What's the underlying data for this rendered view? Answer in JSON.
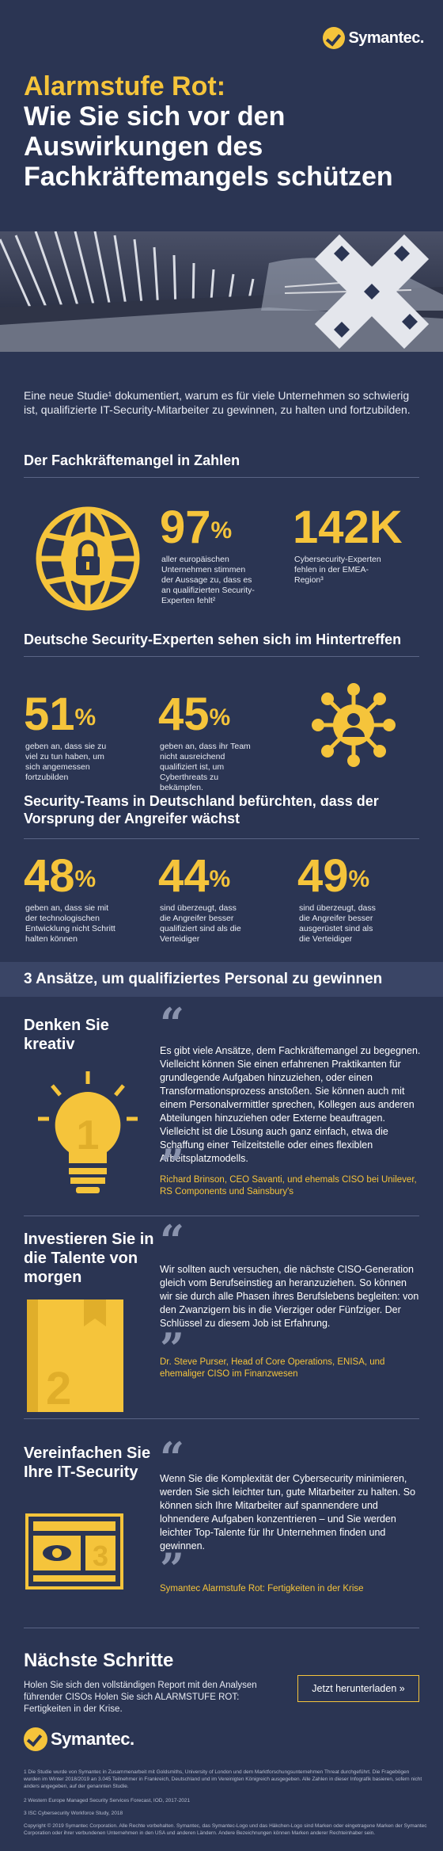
{
  "brand": "Symantec.",
  "title_line1": "Alarmstufe Rot:",
  "title_line2": "Wie Sie sich vor den Auswirkungen des Fachkräftemangels schützen",
  "intro": "Eine neue Studie¹ dokumentiert, warum es für viele Unternehmen so schwierig ist, qualifizierte IT-Security-Mitarbeiter zu gewinnen, zu halten und fortzubilden.",
  "section1": {
    "heading": "Der Fachkräftemangel in Zahlen",
    "stat1_value": "97",
    "stat1_unit": "%",
    "stat1_caption": "aller europäischen Unternehmen stimmen der Aussage zu, dass es an qualifizierten Security-Experten fehlt²",
    "stat2_value": "142K",
    "stat2_caption": "Cybersecurity-Experten fehlen in der EMEA-Region³"
  },
  "section2": {
    "heading": "Deutsche Security-Experten sehen sich im Hintertreffen",
    "stat1_value": "51",
    "stat1_unit": "%",
    "stat1_caption": "geben an, dass sie zu viel zu tun haben, um sich angemessen fortzubilden",
    "stat2_value": "45",
    "stat2_unit": "%",
    "stat2_caption": "geben an, dass ihr Team nicht ausreichend qualifiziert ist, um Cyberthreats zu bekämpfen."
  },
  "section3": {
    "heading": "Security-Teams in Deutschland befürchten, dass der Vorsprung der Angreifer wächst",
    "stat1_value": "48",
    "stat1_unit": "%",
    "stat1_caption": "geben an, dass sie mit der technologischen Entwicklung nicht Schritt halten können",
    "stat2_value": "44",
    "stat2_unit": "%",
    "stat2_caption": "sind überzeugt, dass die Angreifer besser qualifiziert sind als die Verteidiger",
    "stat3_value": "49",
    "stat3_unit": "%",
    "stat3_caption": "sind überzeugt, dass die Angreifer besser ausgerüstet sind als die Verteidiger"
  },
  "banner": "3 Ansätze, um qualifiziertes Personal zu gewinnen",
  "approach1": {
    "heading": "Denken Sie kreativ",
    "icon_number": "1",
    "quote": "Es gibt viele Ansätze, dem Fachkräftemangel zu begegnen. Vielleicht können Sie einen erfahrenen Praktikanten für grundlegende Aufgaben hinzuziehen, oder einen Transformationsprozess anstoßen. Sie können auch mit einem Personalvermittler sprechen, Kollegen aus anderen Abteilungen hinzuziehen oder Externe beauftragen. Vielleicht ist die Lösung auch ganz einfach, etwa die Schaffung einer Teilzeitstelle oder eines flexiblen Arbeitsplatzmodells.",
    "attribution": "Richard Brinson, CEO Savanti, und ehemals CISO bei Unilever, RS Components und Sainsbury's"
  },
  "approach2": {
    "heading": "Investieren Sie in die Talente von morgen",
    "icon_number": "2",
    "quote": "Wir sollten auch versuchen, die nächste CISO-Generation gleich vom Berufseinstieg an heranzuziehen. So können wir sie durch alle Phasen ihres Berufslebens begleiten: von den Zwanzigern bis in die Vierziger oder Fünfziger. Der Schlüssel zu diesem Job ist Erfahrung.",
    "attribution": "Dr. Steve Purser, Head of Core Operations, ENISA, und ehemaliger CISO im Finanzwesen"
  },
  "approach3": {
    "heading": "Vereinfachen Sie Ihre IT-Security",
    "icon_number": "3",
    "quote": "Wenn Sie die Komplexität der Cybersecurity minimieren, werden Sie sich leichter tun, gute Mitarbeiter zu halten. So können sich Ihre Mitarbeiter auf spannendere und lohnendere Aufgaben konzentrieren – und Sie werden leichter Top-Talente für Ihr Unternehmen finden und gewinnen.",
    "attribution": "Symantec Alarmstufe Rot: Fertigkeiten in der Krise"
  },
  "next": {
    "heading": "Nächste Schritte",
    "text": "Holen Sie sich den vollständigen Report mit den Analysen führender CISOs Holen Sie sich ALARMSTUFE ROT: Fertigkeiten in der Krise.",
    "button": "Jetzt herunterladen »"
  },
  "footnotes": {
    "fn1": "1 Die Studie wurde von Symantec in Zusammenarbeit mit Goldsmiths, University of London und dem Marktforschungsunternehmen Threat durchgeführt. Die Fragebögen wurden im Winter 2018/2019 an 3.045 Teilnehmer in Frankreich, Deutschland und im Vereinigten Königreich ausgegeben. Alle Zahlen in dieser Infografik basieren, sofern nicht anders angegeben, auf der genannten Studie.",
    "fn2": "2 Western Europe Managed Security Services Forecast, IOD, 2017-2021",
    "fn3": "3 ISC Cybersecurity Workforce Study, 2018",
    "copyright": "Copyright © 2019 Symantec Corporation. Alle Rechte vorbehalten. Symantec, das Symantec-Logo und das Häkchen-Logo sind Marken oder eingetragene Marken der Symantec Corporation oder ihrer verbundenen Unternehmen in den USA und anderen Ländern. Andere Bezeichnungen können Marken anderer Rechteinhaber sein."
  },
  "colors": {
    "background": "#2b3553",
    "accent": "#f5c43b",
    "banner": "#3a4566"
  }
}
